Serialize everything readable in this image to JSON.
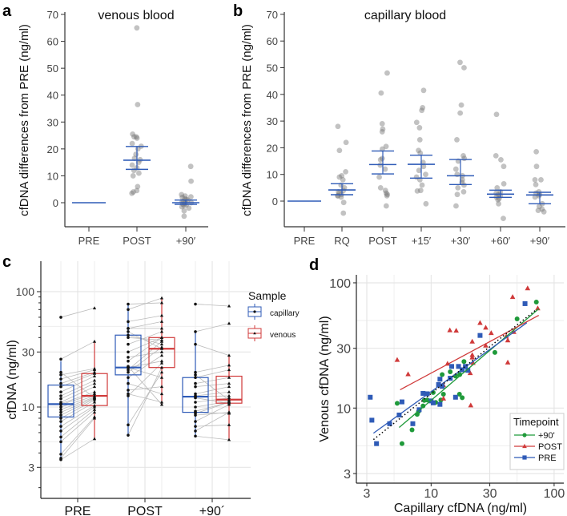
{
  "colors": {
    "accent_blue": "#2f5bb7",
    "accent_red": "#d03a3a",
    "accent_green": "#1f9a3a",
    "points_grey": "#9a9a9a"
  },
  "chart_data": [
    {
      "panel": "a",
      "type": "scatter",
      "title": "venous blood",
      "ylabel": "cfDNA differences from PRE (ng/ml)",
      "ylim": [
        -10,
        70
      ],
      "yticks": [
        0,
        10,
        20,
        30,
        40,
        50,
        60,
        70
      ],
      "categories": [
        "PRE",
        "POST",
        "+90′"
      ],
      "points": [
        [
          0
        ],
        [
          65,
          36.5,
          25.5,
          24.5,
          24.5,
          24,
          22,
          21,
          20,
          18,
          16.5,
          16,
          15,
          14,
          13,
          12,
          11,
          10,
          6,
          4.5,
          4,
          3.5
        ],
        [
          13.5,
          8,
          3,
          2.5,
          2.2,
          2,
          1.5,
          1.2,
          1,
          0.5,
          0.3,
          0,
          -0.2,
          -0.5,
          -0.8,
          -1,
          -1.5,
          -2,
          -3,
          -5
        ]
      ],
      "mean": [
        0,
        15.8,
        0
      ],
      "ci_low": [
        0,
        12.4,
        -0.6
      ],
      "ci_high": [
        0,
        20.9,
        1.0
      ]
    },
    {
      "panel": "b",
      "type": "scatter",
      "title": "capillary blood",
      "ylabel": "cfDNA differences from PRE (ng/ml)",
      "ylim": [
        -10,
        70
      ],
      "yticks": [
        0,
        10,
        20,
        30,
        40,
        50,
        60,
        70
      ],
      "categories": [
        "PRE",
        "RQ",
        "POST",
        "+15′",
        "+30′",
        "+60′",
        "+90′"
      ],
      "points": [
        [
          0
        ],
        [
          28,
          22,
          19,
          11,
          9.5,
          9,
          8,
          6,
          5,
          4,
          3.5,
          3,
          2.5,
          2,
          2,
          1.5,
          -0.5,
          -4.5
        ],
        [
          48,
          40.5,
          29,
          27,
          26,
          20.5,
          19.5,
          16,
          15.5,
          13.5,
          12,
          9,
          5,
          4,
          3,
          2.5,
          2,
          -1.8
        ],
        [
          41.5,
          35,
          34,
          29.5,
          27.5,
          23,
          19,
          18,
          14.5,
          13,
          11.5,
          10,
          9,
          8,
          6,
          4,
          3.8,
          -1
        ],
        [
          52,
          50,
          36,
          33,
          23,
          17,
          16,
          15,
          12,
          10,
          9.5,
          8,
          7,
          6,
          5,
          3.5,
          2.5,
          -1.8
        ],
        [
          32.5,
          17,
          15.5,
          13,
          6.5,
          5,
          3.5,
          3,
          2.5,
          2,
          1.5,
          1,
          0.5,
          -1,
          -6.5
        ],
        [
          18.5,
          13,
          8,
          8,
          6.2,
          3.5,
          3,
          2.5,
          2,
          1.5,
          -1,
          -2,
          -3,
          -3.5,
          -4
        ]
      ],
      "mean": [
        0,
        4.2,
        13.7,
        13.8,
        9.5,
        2.6,
        2.3
      ],
      "ci_low": [
        0,
        2.4,
        10.2,
        8.6,
        6.2,
        1.4,
        -1.0
      ],
      "ci_high": [
        0,
        6.5,
        18.8,
        17.2,
        15.6,
        4.1,
        3.3
      ]
    },
    {
      "panel": "c",
      "type": "box",
      "ylabel": "cfDNA (ng/ml)",
      "yscale": "log",
      "ylim": [
        1.8,
        150
      ],
      "yticks": [
        3,
        10,
        30,
        100
      ],
      "grid": true,
      "categories": [
        "PRE",
        "POST",
        "+90´"
      ],
      "legend": {
        "title": "Sample",
        "position": "right",
        "entries": [
          "capillary",
          "venous"
        ]
      },
      "series": [
        {
          "name": "capillary",
          "color": "#2f5bb7",
          "marker": "circle",
          "boxes": [
            {
              "q1": 8.2,
              "median": 10.6,
              "q3": 15.5,
              "whisker_low": 3.5,
              "whisker_high": 25
            },
            {
              "q1": 19,
              "median": 22,
              "q3": 42,
              "whisker_low": 5.7,
              "whisker_high": 78
            },
            {
              "q1": 9,
              "median": 12.3,
              "q3": 18,
              "whisker_low": 5.6,
              "whisker_high": 45
            }
          ],
          "values": [
            [
              3.5,
              3.6,
              3.9,
              5,
              5.5,
              6.2,
              6.8,
              7.5,
              8,
              8.5,
              9,
              9.5,
              10,
              10.5,
              10.7,
              11,
              11.8,
              12.5,
              13.5,
              15,
              16,
              17.5,
              19,
              20,
              26,
              60
            ],
            [
              5.7,
              7,
              12.5,
              13,
              14,
              16,
              18,
              20,
              21,
              22,
              22,
              22.5,
              25,
              27,
              30,
              35,
              40,
              42,
              45,
              48,
              48,
              55,
              70,
              78
            ],
            [
              5.6,
              6.2,
              6.8,
              7.5,
              8.5,
              8.8,
              9,
              9.2,
              10,
              11,
              12,
              12.3,
              12.5,
              13,
              15,
              16,
              18,
              19,
              20,
              35,
              45,
              78
            ]
          ]
        },
        {
          "name": "venous",
          "color": "#d03a3a",
          "marker": "triangle",
          "boxes": [
            {
              "q1": 10.3,
              "median": 12.5,
              "q3": 19.5,
              "whisker_low": 5.3,
              "whisker_high": 37
            },
            {
              "q1": 22,
              "median": 32,
              "q3": 40,
              "whisker_low": 10.5,
              "whisker_high": 88
            },
            {
              "q1": 10.8,
              "median": 11.6,
              "q3": 18.5,
              "whisker_low": 5.2,
              "whisker_high": 28
            }
          ],
          "values": [
            [
              5.3,
              8,
              8.2,
              9,
              9.5,
              10,
              10.3,
              11,
              11.5,
              11.8,
              12,
              12.2,
              12.5,
              13,
              13.5,
              15,
              16,
              17,
              18.5,
              19.5,
              20,
              21,
              21.5,
              12,
              37,
              72
            ],
            [
              22,
              20,
              24,
              11,
              15,
              13,
              28,
              33,
              37,
              25,
              18,
              10.5,
              40,
              30,
              40,
              45,
              38,
              35,
              32,
              48,
              55,
              62,
              88,
              80
            ],
            [
              5.2,
              9,
              7,
              10.5,
              9,
              11,
              8.8,
              11,
              11.2,
              12,
              10.8,
              12.5,
              13.5,
              15,
              16,
              18,
              21,
              11.5,
              23,
              28,
              53,
              75
            ]
          ]
        }
      ]
    },
    {
      "panel": "d",
      "type": "scatter",
      "xlabel": "Capillary cfDNA (ng/ml)",
      "ylabel": "Venous cfDNA (ng/ml)",
      "xscale": "log",
      "yscale": "log",
      "xlim": [
        2.7,
        110
      ],
      "ylim": [
        2.6,
        115
      ],
      "xticks": [
        3,
        10,
        30,
        100
      ],
      "yticks": [
        3,
        10,
        30,
        100
      ],
      "grid": true,
      "legend": {
        "title": "Timepoint",
        "position": "bottom-right"
      },
      "series": [
        {
          "name": "+90'",
          "color": "#1f9a3a",
          "marker": "circle",
          "x": [
            71.7,
            50,
            33,
            18.5,
            14.3,
            12.3,
            15.8,
            17.1,
            12.6,
            12,
            10.4,
            10.9,
            8.8,
            8.6,
            7.9,
            7.7,
            7.0,
            5.3,
            5.8,
            17,
            17.9,
            9.3
          ],
          "y": [
            70.2,
            51.5,
            27.8,
            23.5,
            19.5,
            18.5,
            18.0,
            18.5,
            12.9,
            11.6,
            13.3,
            11.1,
            11.5,
            10.4,
            9.4,
            8.9,
            6.7,
            10.9,
            5.2,
            12.9,
            12.1,
            11.6
          ],
          "fit": [
            [
              5.5,
              7.0
            ],
            [
              75,
              62
            ]
          ]
        },
        {
          "name": "POST",
          "color": "#d03a3a",
          "marker": "triangle",
          "x": [
            60.9,
            46,
            73.6,
            25,
            27.8,
            14.2,
            16,
            30.8,
            47,
            40.8,
            42,
            21.6,
            27.8,
            21.6,
            21.6,
            21.9,
            42,
            13.6,
            20.8,
            12.6,
            12.6,
            21,
            5.3,
            6.5
          ],
          "y": [
            90.3,
            77,
            62.5,
            47.8,
            43.8,
            41.8,
            41.5,
            39.7,
            40.5,
            37.3,
            34.7,
            33.9,
            31.5,
            26.5,
            25.3,
            22.9,
            23.1,
            22.6,
            19.0,
            15.2,
            11.9,
            10.5,
            24.2,
            18.6
          ],
          "fit": [
            [
              5.6,
              14
            ],
            [
              75,
              55
            ]
          ]
        },
        {
          "name": "PRE",
          "color": "#2f5bb7",
          "marker": "square",
          "x": [
            58,
            25,
            14.7,
            16.7,
            17.9,
            19,
            19.9,
            11.8,
            14.3,
            11.5,
            12.3,
            8.6,
            9.3,
            15.8,
            10,
            10.4,
            11.8,
            5.8,
            3.2,
            3.3,
            5.5,
            4.6,
            7.1,
            8.0,
            3.6
          ],
          "y": [
            68.2,
            38,
            21.5,
            21.5,
            20.2,
            21.5,
            20,
            17.0,
            17.3,
            15.4,
            14.9,
            13.1,
            13.0,
            12.2,
            11.4,
            11.0,
            10.7,
            11.2,
            12.2,
            8.0,
            8.8,
            7.5,
            7.5,
            9.7,
            5.2
          ],
          "fit": [
            [
              3.4,
              6.3
            ],
            [
              60,
              48
            ]
          ]
        }
      ],
      "overall_fit": {
        "style": "dotted",
        "color": "#000000",
        "line": [
          [
            3.4,
            5.6
          ],
          [
            70,
            60
          ]
        ]
      }
    }
  ]
}
